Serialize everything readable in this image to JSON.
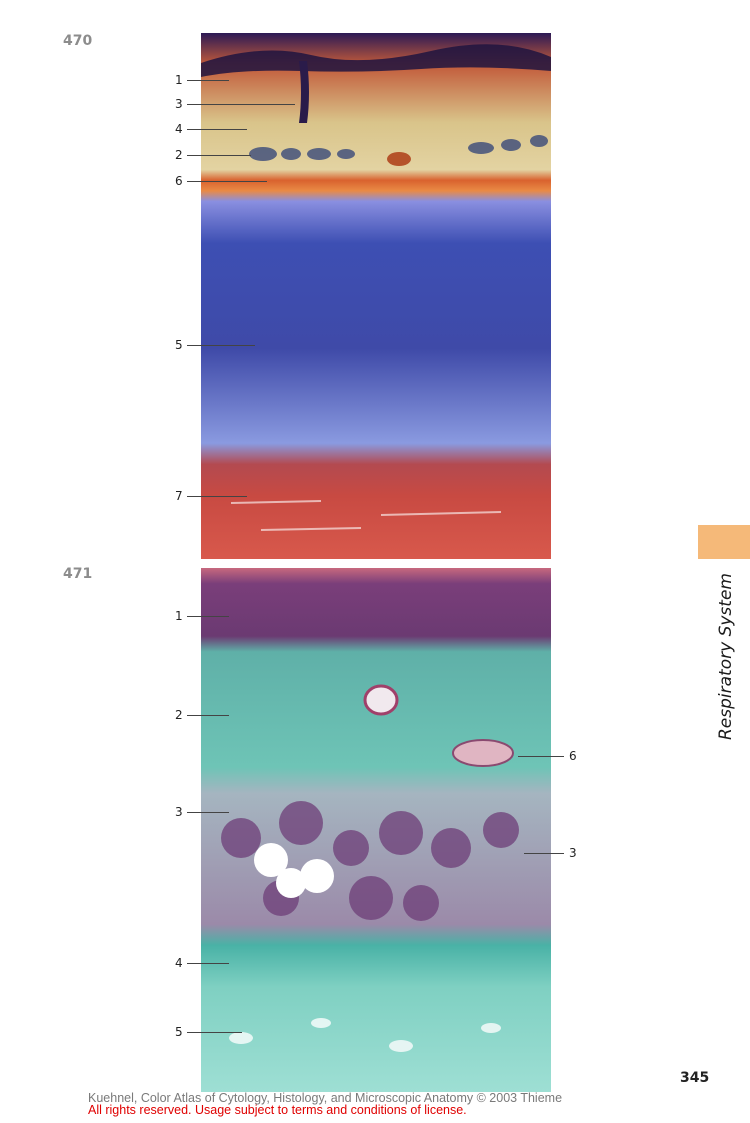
{
  "figures": [
    {
      "number": "470",
      "labels": [
        "1",
        "3",
        "4",
        "2",
        "6",
        "5",
        "7"
      ]
    },
    {
      "number": "471",
      "labels_left": [
        "1",
        "2",
        "3",
        "4",
        "5"
      ],
      "labels_right": [
        "6",
        "3"
      ]
    }
  ],
  "sidebar": {
    "text": "Respiratory System",
    "tab_color": "#f5b979"
  },
  "page_number": "345",
  "credit": {
    "line1": "Kuehnel, Color Atlas of Cytology, Histology, and Microscopic Anatomy © 2003 Thieme",
    "line2": "All rights reserved. Usage subject to terms and conditions of license.",
    "line1_color": "#7a7a7a",
    "line2_color": "#e00000"
  }
}
